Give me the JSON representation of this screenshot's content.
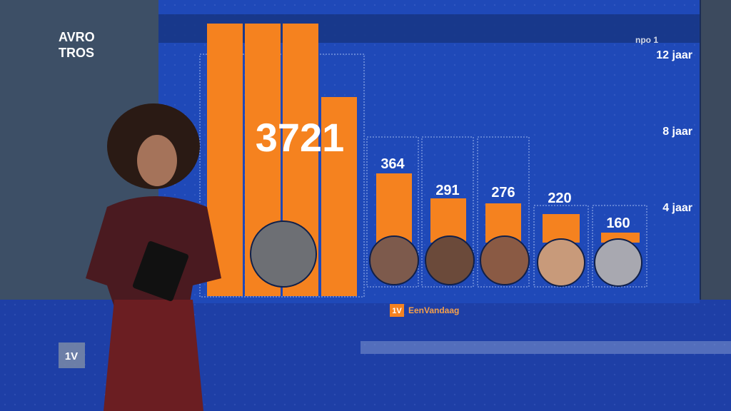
{
  "logo": {
    "line1": "AVRO",
    "line2": "TROS"
  },
  "broadcaster": "npo 1",
  "axis_labels": [
    "12 jaar",
    "8 jaar",
    "4 jaar"
  ],
  "value_labels": [
    "3721",
    "364",
    "291",
    "276",
    "220",
    "160"
  ],
  "footer": {
    "badge": "1V",
    "name": "EenVandaag"
  },
  "corner_badge": "1V"
}
